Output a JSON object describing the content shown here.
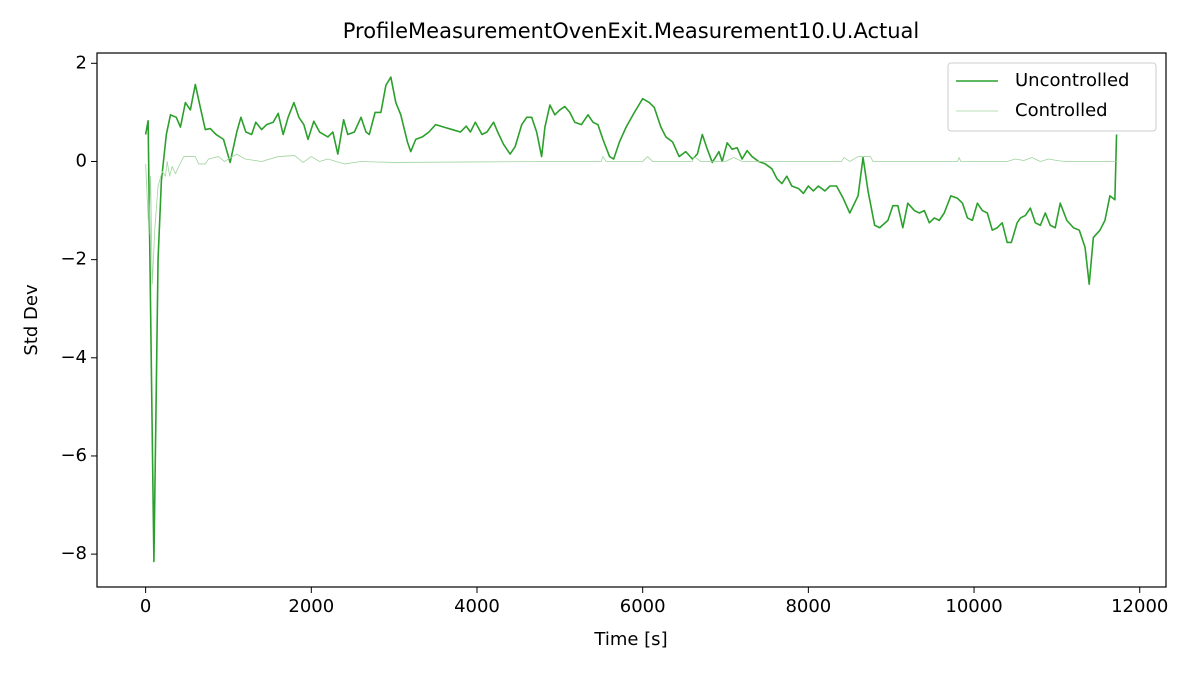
{
  "chart_data": {
    "type": "line",
    "title": "ProfileMeasurementOvenExit.Measurement10.U.Actual",
    "xlabel": "Time [s]",
    "ylabel": "Std Dev",
    "xlim": [
      -587,
      12317
    ],
    "ylim": [
      -8.67,
      2.21
    ],
    "xticks": [
      0,
      2000,
      4000,
      6000,
      8000,
      10000,
      12000
    ],
    "yticks": [
      {
        "value": -8,
        "label": "−8"
      },
      {
        "value": -6,
        "label": "−6"
      },
      {
        "value": -4,
        "label": "−4"
      },
      {
        "value": -2,
        "label": "−2"
      },
      0,
      2
    ],
    "legend": "upper right",
    "grid": false,
    "series": [
      {
        "name": "Uncontrolled",
        "color": "#2ca02c",
        "x": [
          0,
          30,
          100,
          150,
          190,
          250,
          300,
          370,
          420,
          480,
          540,
          600,
          660,
          720,
          780,
          850,
          940,
          1020,
          1100,
          1150,
          1210,
          1280,
          1330,
          1400,
          1460,
          1540,
          1600,
          1660,
          1720,
          1790,
          1850,
          1910,
          1960,
          2030,
          2100,
          2200,
          2260,
          2320,
          2390,
          2440,
          2520,
          2600,
          2660,
          2700,
          2770,
          2840,
          2900,
          2960,
          3020,
          3080,
          3160,
          3200,
          3260,
          3340,
          3420,
          3500,
          3600,
          3700,
          3800,
          3870,
          3920,
          3980,
          4060,
          4120,
          4200,
          4250,
          4320,
          4400,
          4460,
          4540,
          4600,
          4660,
          4720,
          4780,
          4820,
          4880,
          4940,
          5000,
          5060,
          5120,
          5180,
          5260,
          5340,
          5400,
          5460,
          5520,
          5600,
          5650,
          5720,
          5800,
          5900,
          6000,
          6080,
          6140,
          6220,
          6280,
          6360,
          6440,
          6520,
          6600,
          6660,
          6720,
          6780,
          6840,
          6920,
          6960,
          7020,
          7080,
          7140,
          7200,
          7260,
          7320,
          7400,
          7480,
          7560,
          7620,
          7680,
          7740,
          7800,
          7880,
          7940,
          8000,
          8060,
          8120,
          8200,
          8260,
          8340,
          8420,
          8500,
          8600,
          8660,
          8720,
          8800,
          8860,
          8960,
          9020,
          9080,
          9140,
          9200,
          9280,
          9340,
          9400,
          9460,
          9520,
          9580,
          9640,
          9720,
          9800,
          9860,
          9920,
          9980,
          10040,
          10100,
          10160,
          10220,
          10280,
          10340,
          10400,
          10450,
          10520,
          10560,
          10620,
          10680,
          10740,
          10800,
          10860,
          10920,
          10980,
          11040,
          11120,
          11200,
          11270,
          11340,
          11390,
          11440,
          11520,
          11580,
          11640,
          11700,
          11720
        ],
        "values": [
          0.55,
          0.83,
          -8.15,
          -2.0,
          -0.4,
          0.55,
          0.95,
          0.9,
          0.7,
          1.2,
          1.05,
          1.57,
          1.1,
          0.65,
          0.67,
          0.55,
          0.45,
          -0.02,
          0.6,
          0.9,
          0.6,
          0.55,
          0.8,
          0.65,
          0.75,
          0.8,
          0.98,
          0.55,
          0.9,
          1.2,
          0.9,
          0.75,
          0.45,
          0.82,
          0.6,
          0.5,
          0.6,
          0.15,
          0.85,
          0.55,
          0.6,
          0.9,
          0.6,
          0.55,
          1.0,
          1.0,
          1.55,
          1.72,
          1.2,
          0.95,
          0.4,
          0.2,
          0.45,
          0.5,
          0.6,
          0.75,
          0.7,
          0.65,
          0.6,
          0.72,
          0.6,
          0.8,
          0.55,
          0.6,
          0.8,
          0.6,
          0.35,
          0.15,
          0.3,
          0.75,
          0.9,
          0.9,
          0.6,
          0.1,
          0.7,
          1.15,
          0.95,
          1.05,
          1.12,
          1.0,
          0.8,
          0.75,
          0.95,
          0.8,
          0.75,
          0.45,
          0.1,
          0.05,
          0.4,
          0.7,
          1.0,
          1.28,
          1.2,
          1.1,
          0.7,
          0.5,
          0.4,
          0.1,
          0.2,
          0.05,
          0.15,
          0.55,
          0.25,
          -0.02,
          0.2,
          0.0,
          0.38,
          0.25,
          0.28,
          0.05,
          0.22,
          0.1,
          0.0,
          -0.05,
          -0.15,
          -0.35,
          -0.45,
          -0.3,
          -0.5,
          -0.55,
          -0.65,
          -0.5,
          -0.6,
          -0.5,
          -0.6,
          -0.5,
          -0.5,
          -0.75,
          -1.05,
          -0.7,
          0.08,
          -0.6,
          -1.3,
          -1.35,
          -1.2,
          -0.9,
          -0.9,
          -1.35,
          -0.85,
          -1.0,
          -1.05,
          -1.0,
          -1.25,
          -1.15,
          -1.2,
          -1.05,
          -0.7,
          -0.75,
          -0.85,
          -1.15,
          -1.2,
          -0.85,
          -1.0,
          -1.05,
          -1.4,
          -1.35,
          -1.25,
          -1.65,
          -1.65,
          -1.25,
          -1.15,
          -1.1,
          -0.95,
          -1.25,
          -1.3,
          -1.05,
          -1.3,
          -1.35,
          -0.85,
          -1.2,
          -1.35,
          -1.4,
          -1.75,
          -2.5,
          -1.55,
          -1.4,
          -1.2,
          -0.7,
          -0.78,
          0.55
        ]
      },
      {
        "name": "Controlled",
        "color": "#9fd49f",
        "x": [
          0,
          40,
          60,
          80,
          110,
          150,
          200,
          240,
          260,
          290,
          320,
          360,
          400,
          460,
          600,
          640,
          720,
          760,
          880,
          950,
          1100,
          1200,
          1400,
          1600,
          1800,
          1900,
          2000,
          2100,
          2200,
          2300,
          2400,
          2600,
          3000,
          4000,
          5000,
          5500,
          5520,
          5560,
          6000,
          6060,
          6120,
          6600,
          6620,
          6700,
          7000,
          7100,
          7200,
          8000,
          8400,
          8430,
          8500,
          8600,
          8750,
          8780,
          9800,
          9820,
          9840,
          10400,
          10500,
          10600,
          10700,
          10800,
          10900,
          11000,
          11100,
          11450,
          11730
        ],
        "values": [
          -0.05,
          -1.5,
          -0.3,
          -2.5,
          -1.4,
          -0.5,
          -0.2,
          -0.3,
          0.0,
          -0.3,
          -0.1,
          -0.25,
          -0.1,
          0.1,
          0.1,
          -0.05,
          -0.05,
          0.05,
          0.1,
          0.0,
          0.15,
          0.05,
          0.0,
          0.1,
          0.12,
          -0.02,
          0.1,
          0.0,
          0.05,
          0.0,
          -0.05,
          0.0,
          -0.02,
          -0.01,
          0.0,
          0.0,
          0.1,
          0.0,
          0.0,
          0.1,
          0.0,
          0.0,
          0.1,
          0.0,
          0.0,
          0.08,
          0.0,
          0.0,
          0.0,
          0.08,
          0.0,
          0.1,
          0.1,
          0.0,
          0.0,
          0.08,
          0.0,
          0.0,
          0.05,
          0.02,
          0.08,
          0.0,
          0.05,
          0.02,
          0.0,
          0.0,
          0.0
        ]
      }
    ]
  }
}
